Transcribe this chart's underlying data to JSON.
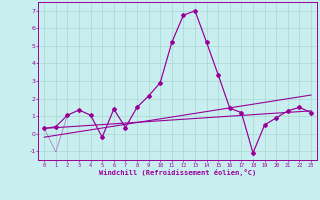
{
  "xlabel": "Windchill (Refroidissement éolien,°C)",
  "ylim": [
    -1.5,
    7.5
  ],
  "xlim": [
    -0.5,
    23.5
  ],
  "yticks": [
    -1,
    0,
    1,
    2,
    3,
    4,
    5,
    6,
    7
  ],
  "x_ticks": [
    0,
    1,
    2,
    3,
    4,
    5,
    6,
    7,
    8,
    9,
    10,
    11,
    12,
    13,
    14,
    15,
    16,
    17,
    18,
    19,
    20,
    21,
    22,
    23
  ],
  "bg_color": "#c8eef0",
  "line_color": "#990099",
  "grid_color": "#a8d8d0",
  "series1_x": [
    0,
    1,
    2,
    3,
    4,
    5,
    6,
    7,
    8,
    9,
    10,
    11,
    12,
    13,
    14,
    15,
    16,
    17,
    18,
    19,
    20,
    21,
    22,
    23
  ],
  "series1_y": [
    0.3,
    0.4,
    1.05,
    1.35,
    1.05,
    -0.2,
    1.4,
    0.35,
    1.5,
    2.15,
    2.9,
    5.2,
    6.75,
    7.0,
    5.2,
    3.35,
    1.45,
    1.2,
    -1.1,
    0.5,
    0.9,
    1.3,
    1.5,
    1.2
  ],
  "series2_x": [
    0,
    23
  ],
  "series2_y": [
    0.3,
    1.3
  ],
  "series3_x": [
    0,
    23
  ],
  "series3_y": [
    -0.2,
    2.2
  ],
  "series4_x": [
    0,
    1,
    2,
    3,
    4,
    5,
    6,
    7,
    8,
    9,
    10,
    11,
    12,
    13,
    14,
    15,
    16,
    17,
    18,
    19,
    20,
    21,
    22,
    23
  ],
  "series4_y": [
    0.3,
    -1.05,
    1.05,
    1.35,
    1.05,
    -0.2,
    1.4,
    0.35,
    1.5,
    2.15,
    2.9,
    5.2,
    6.75,
    7.0,
    5.2,
    3.35,
    1.45,
    1.2,
    -1.1,
    0.5,
    0.9,
    1.3,
    1.5,
    1.2
  ]
}
